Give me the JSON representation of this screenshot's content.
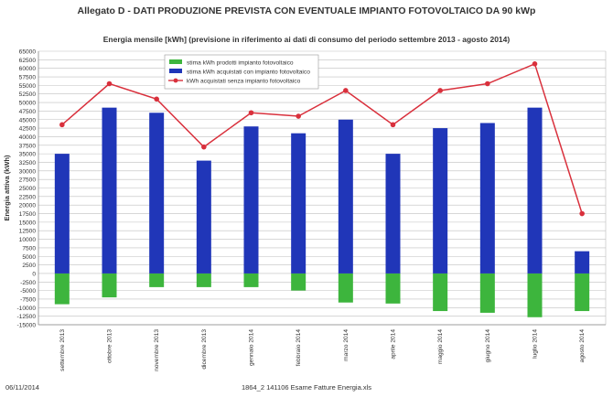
{
  "header": {
    "title": "Allegato D - DATI PRODUZIONE PREVISTA CON EVENTUALE IMPIANTO FOTOVOLTAICO DA 90 kWp"
  },
  "footer": {
    "date": "06/11/2014",
    "filename": "1864_2 141106 Esame Fatture Energia.xls"
  },
  "colors": {
    "produced": "#3db53d",
    "purchased_with_pv": "#2036b8",
    "purchased_without_pv": "#d9303c",
    "grid": "#bfbfbf"
  },
  "chart_data": {
    "type": "bar",
    "title": "Energia mensile [kWh] (previsione in riferimento ai dati di consumo del periodo settembre 2013 - agosto 2014)",
    "xlabel": "",
    "ylabel": "Energia attiva (kWh)",
    "ylim": [
      -15000,
      65000
    ],
    "ytick_step": 2500,
    "grid": true,
    "legend_position": "top-center",
    "categories": [
      "settembre 2013",
      "ottobre 2013",
      "novembre 2013",
      "dicembre 2013",
      "gennaio 2014",
      "febbraio 2014",
      "marzo 2014",
      "aprile 2014",
      "maggio 2014",
      "giugno 2014",
      "luglio 2014",
      "agosto 2014"
    ],
    "series": [
      {
        "name": "stima kWh prodotti impianto fotovoltaico",
        "kind": "bar",
        "color": "#3db53d",
        "values": [
          -9000,
          -7000,
          -4000,
          -4000,
          -4000,
          -5000,
          -8500,
          -8800,
          -11000,
          -11500,
          -12800,
          -11000
        ]
      },
      {
        "name": "stima kWh acquistati con impianto fotovoltaico",
        "kind": "bar",
        "color": "#2036b8",
        "values": [
          35000,
          48500,
          47000,
          33000,
          43000,
          41000,
          45000,
          35000,
          42500,
          44000,
          48500,
          6500
        ]
      },
      {
        "name": "kWh acquistati senza impianto fotovoltaico",
        "kind": "line",
        "color": "#d9303c",
        "values": [
          43500,
          55500,
          51000,
          37000,
          47000,
          46000,
          53500,
          43500,
          53500,
          55500,
          61300,
          17500
        ]
      }
    ]
  }
}
